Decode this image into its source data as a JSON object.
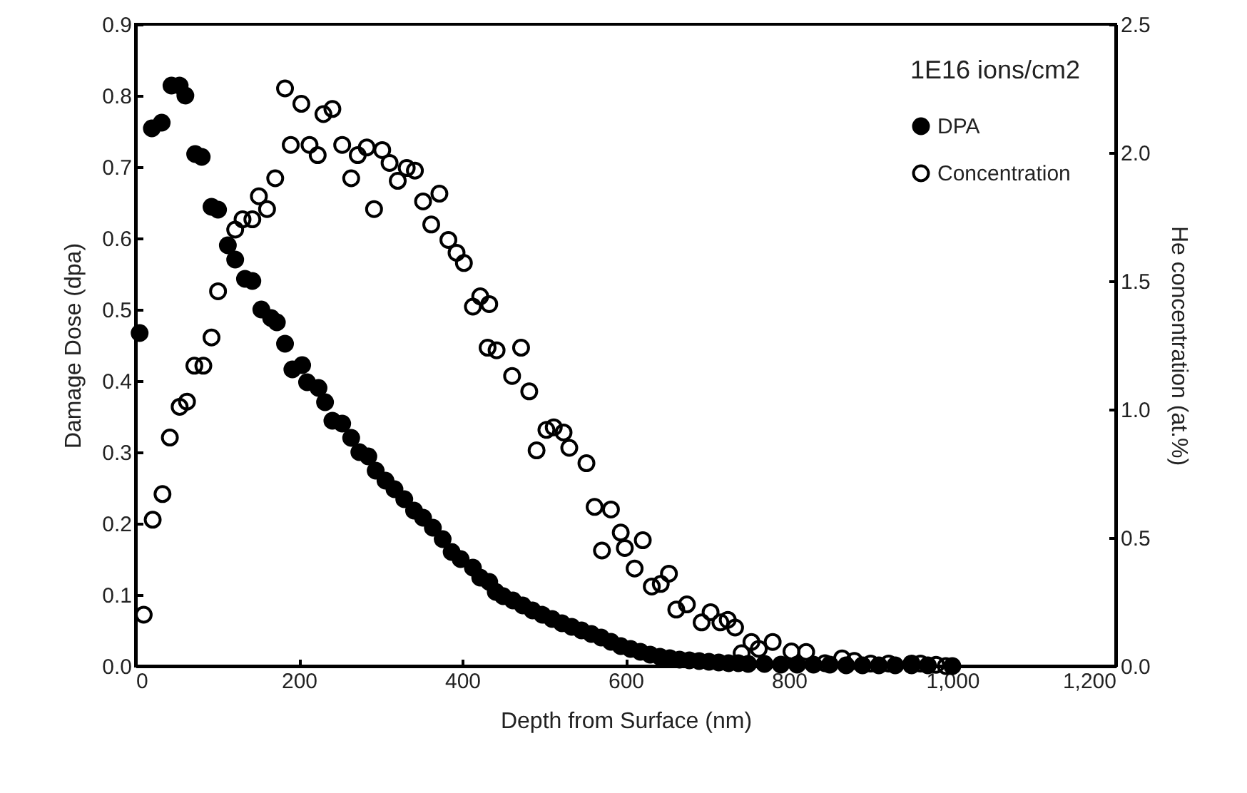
{
  "chart_data": {
    "type": "scatter",
    "xlabel": "Depth from Surface (nm)",
    "ylabel": "Damage Dose (dpa)",
    "y2label": "He concentration (at.%)",
    "legend_title": "1E16 ions/cm2",
    "legend": "top right",
    "grid": false,
    "marker": "circle",
    "xlim": [
      0,
      1200
    ],
    "xticks": [
      0,
      200,
      400,
      600,
      800,
      {
        "value": 1000,
        "label": "1,000"
      },
      {
        "value": 1200,
        "label": "1,200"
      }
    ],
    "ylim": [
      0,
      0.9
    ],
    "yticks": [
      {
        "value": 0,
        "label": "0.0"
      },
      {
        "value": 0.1,
        "label": "0.1"
      },
      {
        "value": 0.2,
        "label": "0.2"
      },
      {
        "value": 0.3,
        "label": "0.3"
      },
      {
        "value": 0.4,
        "label": "0.4"
      },
      {
        "value": 0.5,
        "label": "0.5"
      },
      {
        "value": 0.6,
        "label": "0.6"
      },
      {
        "value": 0.7,
        "label": "0.7"
      },
      {
        "value": 0.8,
        "label": "0.8"
      },
      {
        "value": 0.9,
        "label": "0.9"
      }
    ],
    "y2lim": [
      0,
      2.5
    ],
    "y2ticks": [
      {
        "value": 0,
        "label": "0.0"
      },
      {
        "value": 0.5,
        "label": "0.5"
      },
      {
        "value": 1,
        "label": "1.0"
      },
      {
        "value": 1.5,
        "label": "1.5"
      },
      {
        "value": 2,
        "label": "2.0"
      },
      {
        "value": 2.5,
        "label": "2.5"
      }
    ],
    "series": [
      {
        "name": "DPA",
        "color": "#000000",
        "x": [
          5,
          20,
          32,
          44,
          54,
          61,
          73,
          81,
          93,
          101,
          113,
          122,
          134,
          143,
          154,
          166,
          173,
          183,
          192,
          204,
          210,
          224,
          232,
          241,
          253,
          264,
          274,
          285,
          294,
          306,
          317,
          329,
          341,
          352,
          364,
          376,
          387,
          398,
          413,
          422,
          433,
          441,
          450,
          462,
          474,
          486,
          498,
          510,
          522,
          534,
          546,
          558,
          570,
          582,
          594,
          606,
          618,
          630,
          642,
          654,
          666,
          678,
          690,
          702,
          714,
          726,
          738,
          750,
          770,
          790,
          810,
          830,
          850,
          870,
          890,
          910,
          930,
          950,
          970,
          1000
        ],
        "values": [
          0.467,
          0.754,
          0.762,
          0.814,
          0.814,
          0.8,
          0.718,
          0.714,
          0.644,
          0.64,
          0.59,
          0.57,
          0.543,
          0.54,
          0.5,
          0.488,
          0.482,
          0.452,
          0.416,
          0.422,
          0.398,
          0.39,
          0.37,
          0.344,
          0.34,
          0.32,
          0.3,
          0.294,
          0.274,
          0.26,
          0.248,
          0.234,
          0.218,
          0.208,
          0.194,
          0.178,
          0.16,
          0.15,
          0.138,
          0.124,
          0.118,
          0.104,
          0.098,
          0.092,
          0.085,
          0.078,
          0.072,
          0.066,
          0.06,
          0.055,
          0.05,
          0.045,
          0.04,
          0.034,
          0.028,
          0.024,
          0.02,
          0.016,
          0.013,
          0.011,
          0.009,
          0.008,
          0.007,
          0.006,
          0.005,
          0.004,
          0.004,
          0.003,
          0.003,
          0.002,
          0.002,
          0.002,
          0.002,
          0.001,
          0.001,
          0.001,
          0.001,
          0.001,
          0.001,
          0
        ]
      },
      {
        "name": "Concentration",
        "color": "#000000",
        "axis": "y2",
        "x": [
          10,
          21,
          33,
          42,
          54,
          63,
          72,
          83,
          93,
          101,
          122,
          131,
          143,
          151,
          161,
          171,
          183,
          190,
          203,
          213,
          223,
          230,
          241,
          253,
          264,
          272,
          283,
          292,
          302,
          311,
          321,
          332,
          342,
          352,
          362,
          372,
          383,
          393,
          402,
          413,
          422,
          433,
          431,
          442,
          461,
          472,
          482,
          491,
          503,
          512,
          524,
          531,
          552,
          562,
          571,
          582,
          594,
          599,
          611,
          621,
          632,
          643,
          653,
          662,
          675,
          693,
          704,
          716,
          725,
          734,
          742,
          754,
          763,
          780,
          803,
          821,
          844,
          865,
          880,
          900,
          922,
          950,
          961,
          980,
          992
        ],
        "values": [
          0.2,
          0.57,
          0.67,
          0.89,
          1.01,
          1.03,
          1.17,
          1.17,
          1.28,
          1.46,
          1.7,
          1.74,
          1.74,
          1.83,
          1.78,
          1.9,
          2.25,
          2.03,
          2.19,
          2.03,
          1.99,
          2.15,
          2.17,
          2.03,
          1.9,
          1.99,
          2.02,
          1.78,
          2.01,
          1.96,
          1.89,
          1.94,
          1.93,
          1.81,
          1.72,
          1.84,
          1.66,
          1.61,
          1.57,
          1.4,
          1.44,
          1.41,
          1.24,
          1.23,
          1.13,
          1.24,
          1.07,
          0.84,
          0.92,
          0.93,
          0.91,
          0.85,
          0.79,
          0.62,
          0.45,
          0.61,
          0.52,
          0.46,
          0.38,
          0.49,
          0.31,
          0.32,
          0.36,
          0.22,
          0.24,
          0.17,
          0.21,
          0.17,
          0.18,
          0.15,
          0.05,
          0.094,
          0.067,
          0.094,
          0.057,
          0.055,
          0.011,
          0.03,
          0.02,
          0.01,
          0.01,
          0.01,
          0.01,
          0.005,
          0
        ]
      }
    ]
  }
}
